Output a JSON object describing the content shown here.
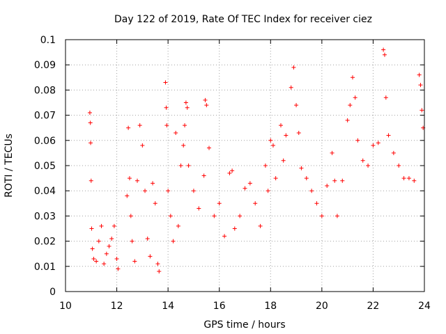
{
  "chart_data": {
    "type": "scatter",
    "title": "Day 122 of 2019, Rate Of TEC Index for receiver ciez",
    "xlabel": "GPS time / hours",
    "ylabel": "ROTI / TECUs",
    "xlim": [
      10,
      24
    ],
    "ylim": [
      0,
      0.1
    ],
    "xticks": [
      "10",
      "12",
      "14",
      "16",
      "18",
      "20",
      "22",
      "24"
    ],
    "yticks": [
      "0",
      "0.01",
      "0.02",
      "0.03",
      "0.04",
      "0.05",
      "0.06",
      "0.07",
      "0.08",
      "0.09",
      "0.1"
    ],
    "grid": true,
    "marker": "+",
    "color": "#ff0000",
    "series": [
      {
        "name": "ROTI",
        "x": [
          10.95,
          10.97,
          10.98,
          11.0,
          11.02,
          11.05,
          11.1,
          11.2,
          11.3,
          11.4,
          11.5,
          11.6,
          11.7,
          11.8,
          11.9,
          12.0,
          12.05,
          12.4,
          12.45,
          12.5,
          12.55,
          12.6,
          12.7,
          12.8,
          12.9,
          13.0,
          13.1,
          13.2,
          13.3,
          13.4,
          13.5,
          13.6,
          13.65,
          13.9,
          13.93,
          13.95,
          14.0,
          14.1,
          14.2,
          14.3,
          14.4,
          14.5,
          14.6,
          14.65,
          14.7,
          14.75,
          14.8,
          15.0,
          15.2,
          15.4,
          15.45,
          15.5,
          15.6,
          15.8,
          16.0,
          16.2,
          16.4,
          16.5,
          16.6,
          16.8,
          17.0,
          17.2,
          17.4,
          17.6,
          17.8,
          17.9,
          18.0,
          18.1,
          18.2,
          18.4,
          18.5,
          18.6,
          18.8,
          18.9,
          19.0,
          19.1,
          19.2,
          19.4,
          19.6,
          19.8,
          20.0,
          20.2,
          20.4,
          20.5,
          20.6,
          20.8,
          21.0,
          21.1,
          21.2,
          21.3,
          21.4,
          21.6,
          21.8,
          22.0,
          22.2,
          22.4,
          22.45,
          22.5,
          22.6,
          22.8,
          23.0,
          23.2,
          23.4,
          23.6,
          23.8,
          23.85,
          23.9,
          23.95
        ],
        "values": [
          0.071,
          0.067,
          0.059,
          0.044,
          0.025,
          0.017,
          0.013,
          0.012,
          0.02,
          0.026,
          0.011,
          0.015,
          0.018,
          0.021,
          0.026,
          0.013,
          0.009,
          0.038,
          0.065,
          0.045,
          0.03,
          0.02,
          0.012,
          0.044,
          0.066,
          0.058,
          0.04,
          0.021,
          0.014,
          0.043,
          0.035,
          0.011,
          0.008,
          0.083,
          0.073,
          0.066,
          0.04,
          0.03,
          0.02,
          0.063,
          0.026,
          0.05,
          0.058,
          0.066,
          0.075,
          0.073,
          0.05,
          0.04,
          0.033,
          0.046,
          0.076,
          0.074,
          0.057,
          0.03,
          0.035,
          0.022,
          0.047,
          0.048,
          0.025,
          0.03,
          0.041,
          0.043,
          0.035,
          0.026,
          0.05,
          0.04,
          0.06,
          0.058,
          0.045,
          0.066,
          0.052,
          0.062,
          0.081,
          0.089,
          0.074,
          0.063,
          0.049,
          0.045,
          0.04,
          0.035,
          0.03,
          0.042,
          0.055,
          0.044,
          0.03,
          0.044,
          0.068,
          0.074,
          0.085,
          0.077,
          0.06,
          0.052,
          0.05,
          0.058,
          0.059,
          0.096,
          0.094,
          0.077,
          0.062,
          0.055,
          0.05,
          0.045,
          0.045,
          0.044,
          0.086,
          0.082,
          0.072,
          0.065
        ]
      }
    ]
  }
}
